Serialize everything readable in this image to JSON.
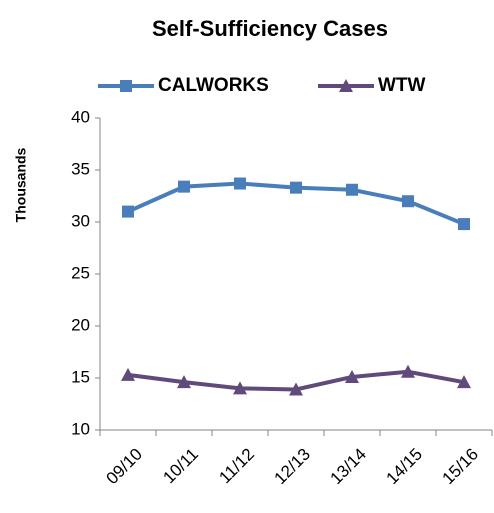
{
  "chart_data": {
    "type": "line",
    "title": "Self-Sufficiency Cases",
    "y_label": "Thousands",
    "categories": [
      "09/10",
      "10/11",
      "11/12",
      "12/13",
      "13/14",
      "14/15",
      "15/16"
    ],
    "series": [
      {
        "name": "CALWORKS",
        "color": "#4a7ebb",
        "marker": "square",
        "values": [
          31.0,
          33.4,
          33.7,
          33.3,
          33.1,
          32.0,
          29.8
        ]
      },
      {
        "name": "WTW",
        "color": "#604a7b",
        "marker": "triangle",
        "values": [
          15.3,
          14.6,
          14.0,
          13.9,
          15.1,
          15.6,
          14.6
        ]
      }
    ],
    "ylim": [
      10,
      40
    ],
    "yticks": [
      10,
      15,
      20,
      25,
      30,
      35,
      40
    ],
    "grid": false,
    "legend": "top"
  }
}
